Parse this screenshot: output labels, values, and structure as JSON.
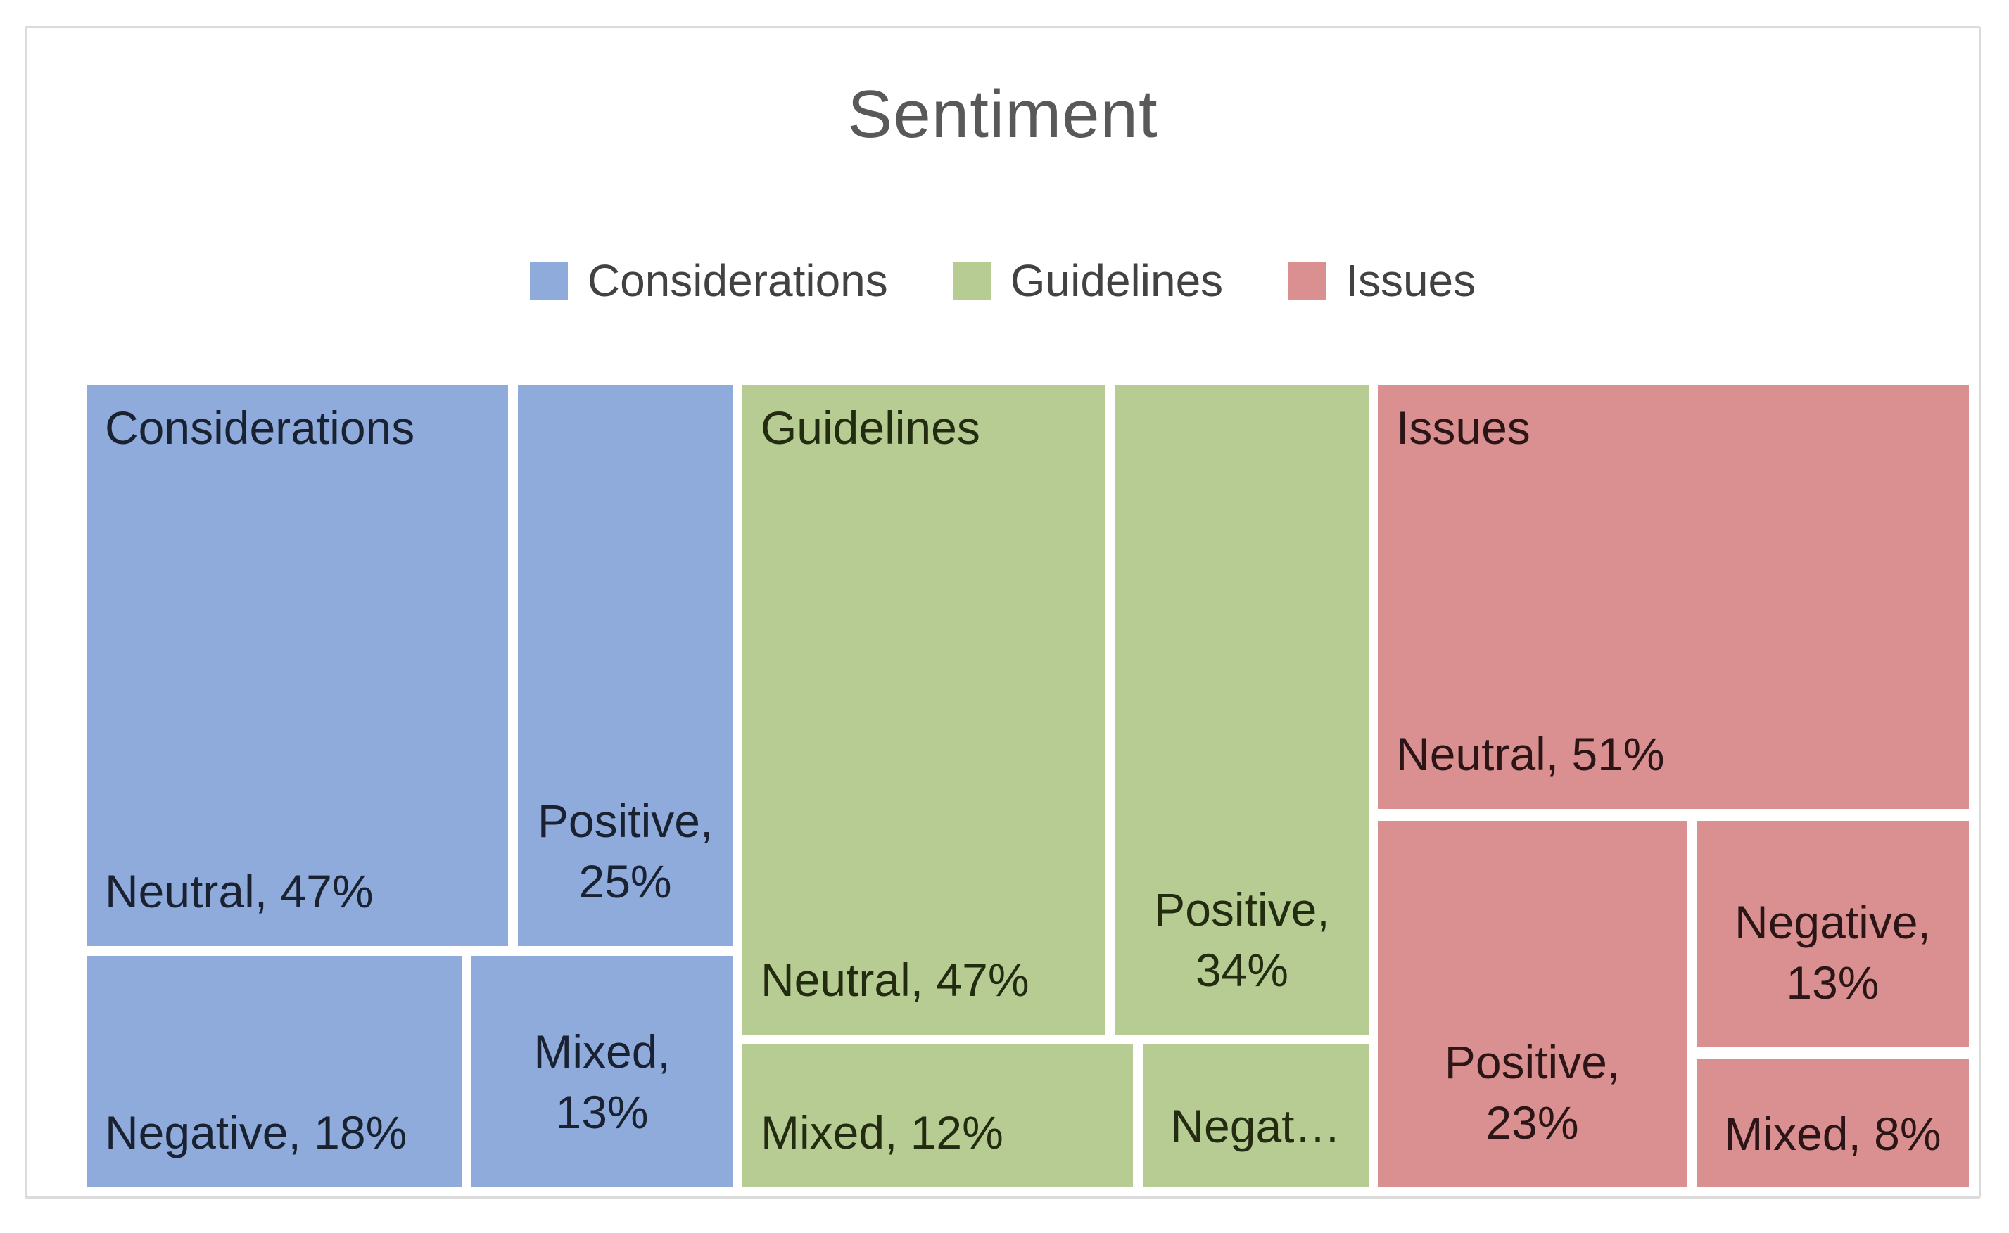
{
  "legend": {
    "items": [
      {
        "label": "Considerations",
        "color": "#8EABDC"
      },
      {
        "label": "Guidelines",
        "color": "#B7CC93"
      },
      {
        "label": "Issues",
        "color": "#DA9090"
      }
    ]
  },
  "chart_data": {
    "type": "treemap",
    "title": "Sentiment",
    "legend_position": "top",
    "grid": false,
    "series_colors": {
      "Considerations": "#8EABDC",
      "Guidelines": "#B7CC93",
      "Issues": "#DA9090"
    },
    "label_colors": {
      "Considerations": "#1A2232",
      "Guidelines": "#232B11",
      "Issues": "#2B1516"
    },
    "series": [
      {
        "name": "Considerations",
        "points": [
          {
            "label": "Neutral",
            "value_pct": 47
          },
          {
            "label": "Positive",
            "value_pct": 25
          },
          {
            "label": "Negative",
            "value_pct": 18
          },
          {
            "label": "Mixed",
            "value_pct": 13
          }
        ]
      },
      {
        "name": "Guidelines",
        "points": [
          {
            "label": "Neutral",
            "value_pct": 47
          },
          {
            "label": "Positive",
            "value_pct": 34
          },
          {
            "label": "Mixed",
            "value_pct": 12
          },
          {
            "label": "Negative",
            "value_pct": null,
            "label_shown": "Negat…"
          }
        ]
      },
      {
        "name": "Issues",
        "points": [
          {
            "label": "Neutral",
            "value_pct": 51
          },
          {
            "label": "Positive",
            "value_pct": 23
          },
          {
            "label": "Negative",
            "value_pct": 13
          },
          {
            "label": "Mixed",
            "value_pct": 8
          }
        ]
      }
    ],
    "tiles": [
      {
        "series": "Considerations",
        "point": "Neutral",
        "title": "Considerations",
        "lines": [
          "Neutral, 47%"
        ],
        "align": "bl",
        "x": 0,
        "y": 0,
        "w": 22.39,
        "h": 69.91
      },
      {
        "series": "Considerations",
        "point": "Positive",
        "lines": [
          "Positive,",
          "25%"
        ],
        "align": "cb",
        "x": 22.92,
        "y": 0,
        "w": 11.4,
        "h": 69.91
      },
      {
        "series": "Considerations",
        "point": "Negative",
        "lines": [
          "Negative, 18%"
        ],
        "align": "bl",
        "x": 0,
        "y": 71.14,
        "w": 19.93,
        "h": 28.86
      },
      {
        "series": "Considerations",
        "point": "Mixed",
        "lines": [
          "Mixed,",
          "13%"
        ],
        "align": "c",
        "x": 20.45,
        "y": 71.14,
        "w": 13.87,
        "h": 28.86
      },
      {
        "series": "Guidelines",
        "point": "Neutral",
        "title": "Guidelines",
        "lines": [
          "Neutral, 47%"
        ],
        "align": "bl",
        "x": 34.84,
        "y": 0,
        "w": 19.29,
        "h": 80.96
      },
      {
        "series": "Guidelines",
        "point": "Positive",
        "lines": [
          "Positive,",
          "34%"
        ],
        "align": "cb",
        "x": 54.65,
        "y": 0,
        "w": 13.46,
        "h": 80.96
      },
      {
        "series": "Guidelines",
        "point": "Mixed",
        "lines": [
          "Mixed, 12%"
        ],
        "align": "bl",
        "x": 34.84,
        "y": 82.19,
        "w": 20.75,
        "h": 17.81
      },
      {
        "series": "Guidelines",
        "point": "Negative",
        "lines": [
          "Negat…"
        ],
        "align": "c",
        "x": 56.11,
        "y": 82.19,
        "w": 12.0,
        "h": 17.81
      },
      {
        "series": "Issues",
        "point": "Neutral",
        "title": "Issues",
        "lines": [
          "Neutral, 51%"
        ],
        "align": "bl",
        "x": 68.6,
        "y": 0,
        "w": 31.4,
        "h": 52.81
      },
      {
        "series": "Issues",
        "point": "Positive",
        "lines": [
          "Positive,",
          "23%"
        ],
        "align": "cb",
        "x": 68.6,
        "y": 54.3,
        "w": 16.41,
        "h": 45.7
      },
      {
        "series": "Issues",
        "point": "Negative",
        "lines": [
          "Negative,",
          "13%"
        ],
        "align": "cb",
        "x": 85.53,
        "y": 54.3,
        "w": 14.47,
        "h": 28.25
      },
      {
        "series": "Issues",
        "point": "Mixed",
        "lines": [
          "Mixed, 8%"
        ],
        "align": "c",
        "x": 85.53,
        "y": 84.04,
        "w": 14.47,
        "h": 15.96
      }
    ]
  }
}
